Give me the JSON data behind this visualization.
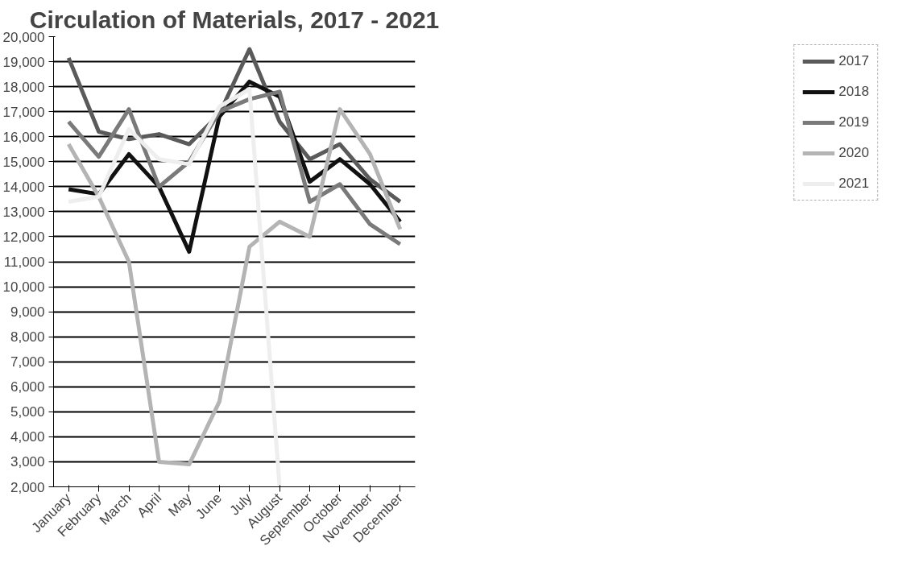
{
  "chart_data": {
    "type": "line",
    "title": "Circulation of Materials, 2017 - 2021",
    "categories": [
      "January",
      "February",
      "March",
      "April",
      "May",
      "June",
      "July",
      "August",
      "September",
      "October",
      "November",
      "December"
    ],
    "series": [
      {
        "name": "2017",
        "color": "#5a5a5a",
        "values": [
          19150,
          16200,
          15900,
          16100,
          15700,
          16900,
          19500,
          16600,
          15100,
          15700,
          14300,
          13400
        ]
      },
      {
        "name": "2018",
        "color": "#111111",
        "values": [
          13900,
          13700,
          15300,
          14000,
          11400,
          16800,
          18200,
          17600,
          14200,
          15100,
          14100,
          12600
        ]
      },
      {
        "name": "2019",
        "color": "#7a7a7a",
        "values": [
          16600,
          15200,
          17100,
          14000,
          15000,
          17000,
          17500,
          17800,
          13400,
          14100,
          12500,
          11700
        ]
      },
      {
        "name": "2020",
        "color": "#b4b4b4",
        "values": [
          15700,
          13600,
          11000,
          3000,
          2900,
          5400,
          11600,
          12600,
          12000,
          17100,
          15300,
          12300
        ]
      },
      {
        "name": "2021",
        "color": "#eeeeee",
        "values": [
          13400,
          13600,
          16300,
          15100,
          14900,
          17200,
          17900,
          2000,
          null,
          null,
          null,
          null
        ]
      }
    ],
    "ylim": [
      2000,
      20000
    ],
    "yticks": [
      {
        "value": 2000,
        "label": "2,000"
      },
      {
        "value": 3000,
        "label": "3,000"
      },
      {
        "value": 4000,
        "label": "4,000"
      },
      {
        "value": 5000,
        "label": "5,000"
      },
      {
        "value": 6000,
        "label": "6,000"
      },
      {
        "value": 7000,
        "label": "7,000"
      },
      {
        "value": 8000,
        "label": "8,000"
      },
      {
        "value": 9000,
        "label": "9,000"
      },
      {
        "value": 10000,
        "label": "10,000"
      },
      {
        "value": 11000,
        "label": "11,000"
      },
      {
        "value": 12000,
        "label": "12,000"
      },
      {
        "value": 13000,
        "label": "13,000"
      },
      {
        "value": 14000,
        "label": "14,000"
      },
      {
        "value": 15000,
        "label": "15,000"
      },
      {
        "value": 16000,
        "label": "16,000"
      },
      {
        "value": 17000,
        "label": "17,000"
      },
      {
        "value": 18000,
        "label": "18,000"
      },
      {
        "value": 19000,
        "label": "19,000"
      },
      {
        "value": 20000,
        "label": "20,000"
      }
    ],
    "grid": "y",
    "legend": "right",
    "marker": "none",
    "line_style": "solid"
  }
}
